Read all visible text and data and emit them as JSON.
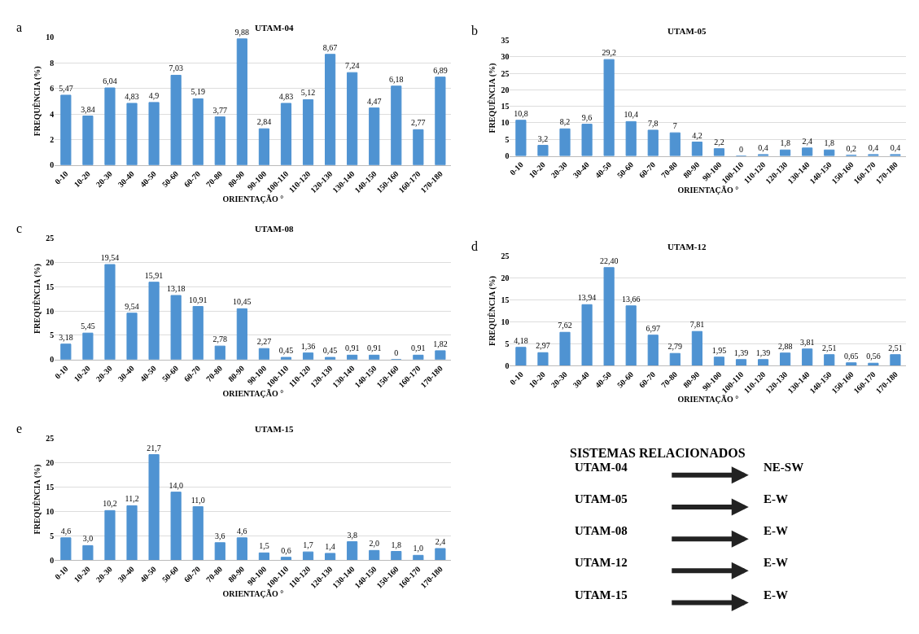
{
  "chart_data": [
    {
      "type": "bar",
      "title": "UTAM-04",
      "xlabel": "ORIENTAÇÃO °",
      "ylabel": "FREQUÊNCIA (%)",
      "annotations": [
        "a"
      ],
      "categories": [
        "0-10",
        "10-20",
        "20-30",
        "30-40",
        "40-50",
        "50-60",
        "60-70",
        "70-80",
        "80-90",
        "90-100",
        "100-110",
        "110-120",
        "120-130",
        "130-140",
        "140-150",
        "150-160",
        "160-170",
        "170-180"
      ],
      "values": [
        5.47,
        3.84,
        6.04,
        4.83,
        4.9,
        7.03,
        5.19,
        3.77,
        9.88,
        2.84,
        4.83,
        5.12,
        8.67,
        7.24,
        4.47,
        6.18,
        2.77,
        6.89
      ],
      "value_labels": [
        "5,47",
        "3,84",
        "6,04",
        "4,83",
        "4,9",
        "7,03",
        "5,19",
        "3,77",
        "9,88",
        "2,84",
        "4,83",
        "5,12",
        "8,67",
        "7,24",
        "4,47",
        "6,18",
        "2,77",
        "6,89"
      ],
      "color": "#4f93d2",
      "ylim": [
        0,
        10
      ],
      "yticks": [
        0,
        2,
        4,
        6,
        8,
        10
      ],
      "grid": "y"
    },
    {
      "type": "bar",
      "title": "UTAM-05",
      "xlabel": "ORIENTAÇÃO °",
      "ylabel": "FREQUÊNCIA (%)",
      "annotations": [
        "b"
      ],
      "categories": [
        "0-10",
        "10-20",
        "20-30",
        "30-40",
        "40-50",
        "50-60",
        "60-70",
        "70-80",
        "80-90",
        "90-100",
        "100-110",
        "110-120",
        "120-130",
        "130-140",
        "140-150",
        "150-160",
        "160-170",
        "170-180"
      ],
      "values": [
        10.8,
        3.2,
        8.2,
        9.6,
        29.2,
        10.4,
        7.8,
        7,
        4.2,
        2.2,
        0,
        0.4,
        1.8,
        2.4,
        1.8,
        0.2,
        0.4,
        0.4
      ],
      "value_labels": [
        "10,8",
        "3,2",
        "8,2",
        "9,6",
        "29,2",
        "10,4",
        "7,8",
        "7",
        "4,2",
        "2,2",
        "0",
        "0,4",
        "1,8",
        "2,4",
        "1,8",
        "0,2",
        "0,4",
        "0,4"
      ],
      "color": "#4f93d2",
      "ylim": [
        0,
        35
      ],
      "yticks": [
        0,
        5,
        10,
        15,
        20,
        25,
        30,
        35
      ],
      "grid": "y"
    },
    {
      "type": "bar",
      "title": "UTAM-08",
      "xlabel": "ORIENTAÇÃO °",
      "ylabel": "FREQUÊNCIA (%)",
      "annotations": [
        "c"
      ],
      "categories": [
        "0-10",
        "10-20",
        "20-30",
        "30-40",
        "40-50",
        "50-60",
        "60-70",
        "70-80",
        "80-90",
        "90-100",
        "100-110",
        "110-120",
        "120-130",
        "130-140",
        "140-150",
        "150-160",
        "160-170",
        "170-180"
      ],
      "values": [
        3.18,
        5.45,
        19.54,
        9.54,
        15.91,
        13.18,
        10.91,
        2.78,
        10.45,
        2.27,
        0.45,
        1.36,
        0.45,
        0.91,
        0.91,
        0,
        0.91,
        1.82
      ],
      "value_labels": [
        "3,18",
        "5,45",
        "19,54",
        "9,54",
        "15,91",
        "13,18",
        "10,91",
        "2,78",
        "10,45",
        "2,27",
        "0,45",
        "1,36",
        "0,45",
        "0,91",
        "0,91",
        "0",
        "0,91",
        "1,82"
      ],
      "color": "#4f93d2",
      "ylim": [
        0,
        25
      ],
      "yticks": [
        0,
        5,
        10,
        15,
        20,
        25
      ],
      "grid": "y"
    },
    {
      "type": "bar",
      "title": "UTAM-12",
      "xlabel": "ORIENTAÇÃO °",
      "ylabel": "FREQUÊNCIA (%)",
      "annotations": [
        "d"
      ],
      "categories": [
        "0-10",
        "10-20",
        "20-30",
        "30-40",
        "40-50",
        "50-60",
        "60-70",
        "70-80",
        "80-90",
        "90-100",
        "100-110",
        "110-120",
        "120-130",
        "130-140",
        "140-150",
        "150-160",
        "160-170",
        "170-180"
      ],
      "values": [
        4.18,
        2.97,
        7.62,
        13.94,
        22.4,
        13.66,
        6.97,
        2.79,
        7.81,
        1.95,
        1.39,
        1.39,
        2.88,
        3.81,
        2.51,
        0.65,
        0.56,
        2.51
      ],
      "value_labels": [
        "4,18",
        "2,97",
        "7,62",
        "13,94",
        "22,40",
        "13,66",
        "6,97",
        "2,79",
        "7,81",
        "1,95",
        "1,39",
        "1,39",
        "2,88",
        "3,81",
        "2,51",
        "0,65",
        "0,56",
        "2,51"
      ],
      "color": "#4f93d2",
      "ylim": [
        0,
        25
      ],
      "yticks": [
        0,
        5,
        10,
        15,
        20,
        25
      ],
      "grid": "y"
    },
    {
      "type": "bar",
      "title": "UTAM-15",
      "xlabel": "ORIENTAÇÃO °",
      "ylabel": "FREQUÊNCIA (%)",
      "annotations": [
        "e"
      ],
      "categories": [
        "0-10",
        "10-20",
        "20-30",
        "30-40",
        "40-50",
        "50-60",
        "60-70",
        "70-80",
        "80-90",
        "90-100",
        "100-110",
        "110-120",
        "120-130",
        "130-140",
        "140-150",
        "150-160",
        "160-170",
        "170-180"
      ],
      "values": [
        4.6,
        3.0,
        10.2,
        11.2,
        21.7,
        14.0,
        11.0,
        3.6,
        4.6,
        1.5,
        0.6,
        1.7,
        1.4,
        3.8,
        2.0,
        1.8,
        1.0,
        2.4
      ],
      "value_labels": [
        "4,6",
        "3,0",
        "10,2",
        "11,2",
        "21,7",
        "14,0",
        "11,0",
        "3,6",
        "4,6",
        "1,5",
        "0,6",
        "1,7",
        "1,4",
        "3,8",
        "2,0",
        "1,8",
        "1,0",
        "2,4"
      ],
      "color": "#4f93d2",
      "ylim": [
        0,
        25
      ],
      "yticks": [
        0,
        5,
        10,
        15,
        20,
        25
      ],
      "grid": "y"
    },
    {
      "type": "other",
      "title": "SISTEMAS RELACIONADOS",
      "annotations": [
        "UTAM-04",
        "NE-SW",
        "UTAM-05",
        "E-W",
        "UTAM-08",
        "E-W",
        "UTAM-12",
        "E-W",
        "UTAM-15",
        "E-W"
      ]
    }
  ]
}
